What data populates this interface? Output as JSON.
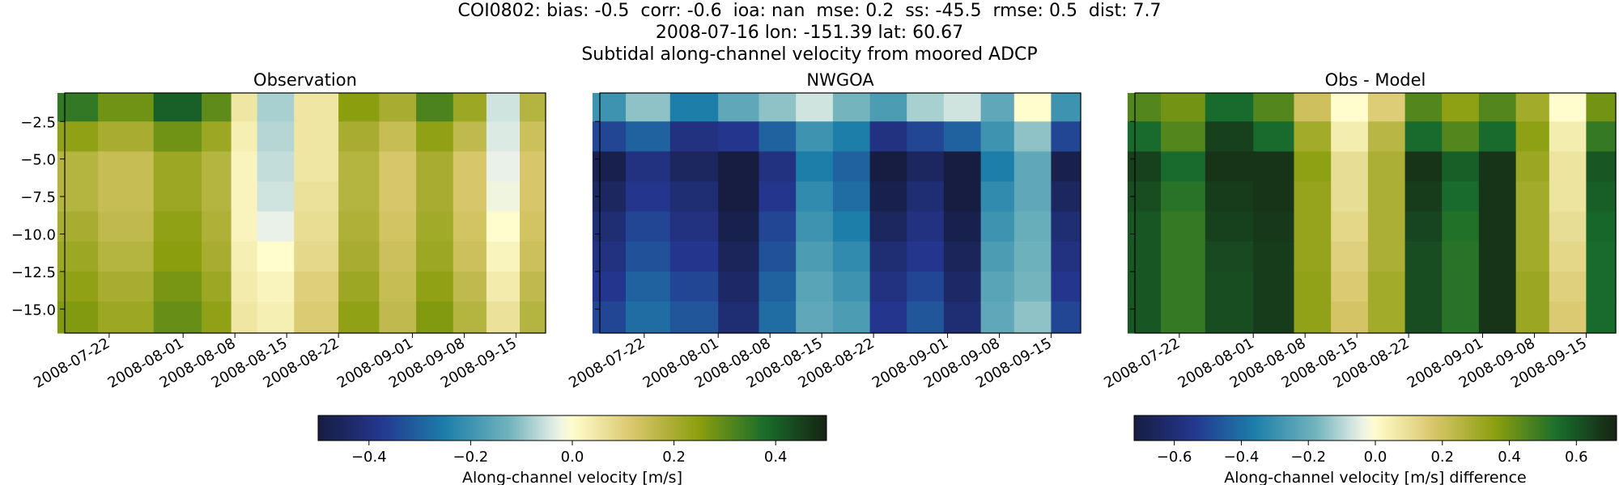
{
  "header": {
    "line1": "COI0802: bias: -0.5  corr: -0.6  ioa: nan  mse: 0.2  ss: -45.5  rmse: 0.5  dist: 7.7",
    "line2": "2008-07-16 lon: -151.39 lat: 60.67",
    "line3": "Subtidal along-channel velocity from moored ADCP"
  },
  "chart_data": [
    {
      "type": "heatmap",
      "title": "Observation",
      "ylabel": "",
      "xlim": [
        "2008-07-16",
        "2008-09-19"
      ],
      "ylim": [
        -16.6,
        -0.6
      ],
      "xticks": [
        "2008-07-22",
        "2008-08-01",
        "2008-08-08",
        "2008-08-15",
        "2008-08-22",
        "2008-09-01",
        "2008-09-08",
        "2008-09-15"
      ],
      "yticks": [
        -2.5,
        -5.0,
        -7.5,
        -10.0,
        -12.5,
        -15.0
      ],
      "depths": [
        -1.5,
        -3.5,
        -5.5,
        -7.5,
        -9.5,
        -11.5,
        -13.5,
        -15.5
      ],
      "times": [
        "2008-07-17",
        "2008-07-24",
        "2008-08-01",
        "2008-08-06",
        "2008-08-09",
        "2008-08-13",
        "2008-08-19",
        "2008-08-25",
        "2008-08-30",
        "2008-09-04",
        "2008-09-09",
        "2008-09-13",
        "2008-09-18"
      ],
      "values": [
        [
          0.35,
          0.28,
          0.4,
          0.3,
          0.05,
          -0.08,
          0.05,
          0.25,
          0.2,
          0.32,
          0.22,
          -0.05,
          0.18
        ],
        [
          0.24,
          0.2,
          0.28,
          0.22,
          0.03,
          -0.07,
          0.05,
          0.2,
          0.15,
          0.24,
          0.16,
          -0.04,
          0.14
        ],
        [
          0.18,
          0.15,
          0.22,
          0.18,
          0.02,
          -0.06,
          0.05,
          0.18,
          0.12,
          0.2,
          0.12,
          -0.03,
          0.12
        ],
        [
          0.18,
          0.15,
          0.22,
          0.18,
          0.02,
          -0.05,
          0.06,
          0.18,
          0.12,
          0.2,
          0.12,
          -0.02,
          0.12
        ],
        [
          0.2,
          0.16,
          0.24,
          0.19,
          0.02,
          -0.03,
          0.07,
          0.19,
          0.13,
          0.21,
          0.13,
          0.0,
          0.13
        ],
        [
          0.22,
          0.18,
          0.25,
          0.2,
          0.03,
          0.0,
          0.08,
          0.2,
          0.14,
          0.22,
          0.14,
          0.02,
          0.14
        ],
        [
          0.24,
          0.2,
          0.27,
          0.22,
          0.04,
          0.02,
          0.1,
          0.22,
          0.15,
          0.24,
          0.16,
          0.04,
          0.16
        ],
        [
          0.26,
          0.22,
          0.29,
          0.24,
          0.05,
          0.03,
          0.11,
          0.24,
          0.16,
          0.26,
          0.18,
          0.06,
          0.18
        ]
      ],
      "colorbar": {
        "label": "Along-channel velocity [m/s]",
        "range": [
          -0.5,
          0.5
        ],
        "ticks": [
          -0.4,
          -0.2,
          0.0,
          0.2,
          0.4
        ],
        "colormap": "delta"
      }
    },
    {
      "type": "heatmap",
      "title": "NWGOA",
      "xlim": [
        "2008-07-16",
        "2008-09-19"
      ],
      "ylim": [
        -16.6,
        -0.6
      ],
      "xticks": [
        "2008-07-22",
        "2008-08-01",
        "2008-08-08",
        "2008-08-15",
        "2008-08-22",
        "2008-09-01",
        "2008-09-08",
        "2008-09-15"
      ],
      "depths": [
        -1.5,
        -3.5,
        -5.5,
        -7.5,
        -9.5,
        -11.5,
        -13.5,
        -15.5
      ],
      "times": [
        "2008-07-17",
        "2008-07-22",
        "2008-07-29",
        "2008-08-04",
        "2008-08-09",
        "2008-08-14",
        "2008-08-19",
        "2008-08-24",
        "2008-08-29",
        "2008-09-03",
        "2008-09-08",
        "2008-09-12",
        "2008-09-18"
      ],
      "values": [
        [
          -0.2,
          -0.1,
          -0.25,
          -0.15,
          -0.1,
          -0.05,
          -0.12,
          -0.18,
          -0.08,
          -0.05,
          -0.15,
          0.0,
          -0.2
        ],
        [
          -0.35,
          -0.3,
          -0.4,
          -0.38,
          -0.3,
          -0.2,
          -0.25,
          -0.4,
          -0.35,
          -0.3,
          -0.2,
          -0.1,
          -0.35
        ],
        [
          -0.48,
          -0.4,
          -0.45,
          -0.5,
          -0.4,
          -0.25,
          -0.3,
          -0.5,
          -0.45,
          -0.5,
          -0.25,
          -0.15,
          -0.48
        ],
        [
          -0.45,
          -0.38,
          -0.42,
          -0.5,
          -0.38,
          -0.22,
          -0.28,
          -0.48,
          -0.42,
          -0.5,
          -0.22,
          -0.15,
          -0.45
        ],
        [
          -0.42,
          -0.35,
          -0.4,
          -0.48,
          -0.35,
          -0.2,
          -0.25,
          -0.45,
          -0.4,
          -0.48,
          -0.2,
          -0.14,
          -0.42
        ],
        [
          -0.4,
          -0.33,
          -0.38,
          -0.46,
          -0.33,
          -0.18,
          -0.22,
          -0.42,
          -0.38,
          -0.46,
          -0.18,
          -0.13,
          -0.4
        ],
        [
          -0.38,
          -0.3,
          -0.35,
          -0.44,
          -0.3,
          -0.16,
          -0.2,
          -0.4,
          -0.35,
          -0.44,
          -0.16,
          -0.12,
          -0.38
        ],
        [
          -0.35,
          -0.28,
          -0.32,
          -0.42,
          -0.28,
          -0.15,
          -0.18,
          -0.38,
          -0.32,
          -0.42,
          -0.15,
          -0.1,
          -0.35
        ]
      ]
    },
    {
      "type": "heatmap",
      "title": "Obs - Model",
      "xlim": [
        "2008-07-16",
        "2008-09-19"
      ],
      "ylim": [
        -16.6,
        -0.6
      ],
      "xticks": [
        "2008-07-22",
        "2008-08-01",
        "2008-08-08",
        "2008-08-15",
        "2008-08-22",
        "2008-09-01",
        "2008-09-08",
        "2008-09-15"
      ],
      "depths": [
        -1.5,
        -3.5,
        -5.5,
        -7.5,
        -9.5,
        -11.5,
        -13.5,
        -15.5
      ],
      "times": [
        "2008-07-17",
        "2008-07-22",
        "2008-07-29",
        "2008-08-04",
        "2008-08-09",
        "2008-08-14",
        "2008-08-19",
        "2008-08-24",
        "2008-08-29",
        "2008-09-03",
        "2008-09-08",
        "2008-09-12",
        "2008-09-18"
      ],
      "values": [
        [
          0.45,
          0.4,
          0.55,
          0.45,
          0.2,
          0.0,
          0.15,
          0.45,
          0.35,
          0.45,
          0.3,
          0.0,
          0.4
        ],
        [
          0.55,
          0.45,
          0.65,
          0.55,
          0.3,
          0.05,
          0.25,
          0.55,
          0.45,
          0.55,
          0.35,
          0.05,
          0.5
        ],
        [
          0.65,
          0.55,
          0.68,
          0.68,
          0.35,
          0.1,
          0.28,
          0.68,
          0.58,
          0.68,
          0.32,
          0.08,
          0.6
        ],
        [
          0.62,
          0.52,
          0.66,
          0.68,
          0.33,
          0.1,
          0.28,
          0.66,
          0.55,
          0.68,
          0.3,
          0.08,
          0.58
        ],
        [
          0.6,
          0.5,
          0.65,
          0.67,
          0.33,
          0.12,
          0.28,
          0.64,
          0.53,
          0.68,
          0.3,
          0.1,
          0.56
        ],
        [
          0.6,
          0.5,
          0.63,
          0.66,
          0.33,
          0.14,
          0.28,
          0.62,
          0.52,
          0.68,
          0.3,
          0.12,
          0.55
        ],
        [
          0.6,
          0.5,
          0.62,
          0.66,
          0.34,
          0.16,
          0.3,
          0.62,
          0.52,
          0.68,
          0.32,
          0.14,
          0.55
        ],
        [
          0.6,
          0.5,
          0.62,
          0.66,
          0.34,
          0.18,
          0.3,
          0.62,
          0.52,
          0.68,
          0.32,
          0.16,
          0.55
        ]
      ],
      "colorbar": {
        "label": "Along-channel velocity [m/s] difference",
        "range": [
          -0.72,
          0.72
        ],
        "ticks": [
          -0.6,
          -0.4,
          -0.2,
          0.0,
          0.2,
          0.4,
          0.6
        ],
        "colormap": "delta"
      }
    }
  ]
}
